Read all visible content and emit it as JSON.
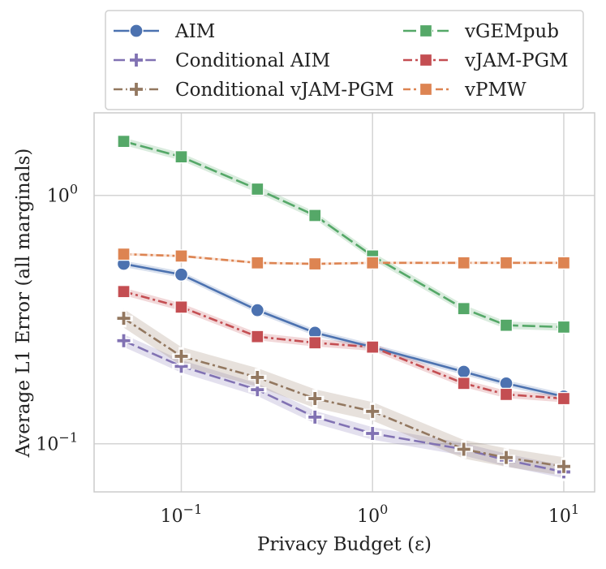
{
  "chart_data": {
    "type": "line",
    "x_scale": "log",
    "y_scale": "log",
    "xlabel": "Privacy Budget (ε)",
    "ylabel": "Average L1 Error (all marginals)",
    "xlim": [
      0.035,
      14.5
    ],
    "ylim": [
      0.064,
      2.15
    ],
    "x_ticks": [
      {
        "value": 0.1,
        "base": "10",
        "exp": "−1"
      },
      {
        "value": 1,
        "base": "10",
        "exp": "0"
      },
      {
        "value": 10,
        "base": "10",
        "exp": "1"
      }
    ],
    "y_ticks": [
      {
        "value": 0.1,
        "base": "10",
        "exp": "−1"
      },
      {
        "value": 1,
        "base": "10",
        "exp": "0"
      }
    ],
    "x": [
      0.05,
      0.1,
      0.25,
      0.5,
      1,
      3,
      5,
      10
    ],
    "series": [
      {
        "name": "AIM",
        "color": "#4c72b0",
        "marker": "circle",
        "dash": "solid",
        "values": [
          0.53,
          0.48,
          0.345,
          0.28,
          0.245,
          0.195,
          0.175,
          0.155
        ],
        "band": 0.03
      },
      {
        "name": "Conditional AIM",
        "color": "#8172b3",
        "marker": "plus",
        "dash": "long",
        "values": [
          0.26,
          0.205,
          0.165,
          0.128,
          0.11,
          0.095,
          0.086,
          0.077
        ],
        "band": 0.06
      },
      {
        "name": "Conditional vJAM-PGM",
        "color": "#937860",
        "marker": "plus",
        "dash": "dashdot",
        "values": [
          0.32,
          0.225,
          0.185,
          0.152,
          0.135,
          0.095,
          0.088,
          0.081
        ],
        "band": 0.09
      },
      {
        "name": "vGEMpub",
        "color": "#55a868",
        "marker": "square",
        "dash": "longdash",
        "values": [
          1.65,
          1.43,
          1.06,
          0.83,
          0.57,
          0.35,
          0.3,
          0.295
        ],
        "band": 0.035
      },
      {
        "name": "vJAM-PGM",
        "color": "#c44e52",
        "marker": "square",
        "dash": "dashdot",
        "values": [
          0.41,
          0.355,
          0.27,
          0.255,
          0.245,
          0.175,
          0.158,
          0.152
        ],
        "band": 0.035
      },
      {
        "name": "vPMW",
        "color": "#dd8452",
        "marker": "square",
        "dash": "dashdot2",
        "values": [
          0.58,
          0.57,
          0.535,
          0.53,
          0.535,
          0.535,
          0.535,
          0.535
        ],
        "band": 0.012
      }
    ],
    "legend": {
      "placement": "top",
      "columns": 2,
      "order": [
        "AIM",
        "Conditional AIM",
        "Conditional vJAM-PGM",
        "vGEMpub",
        "vJAM-PGM",
        "vPMW"
      ]
    },
    "grid": true
  }
}
